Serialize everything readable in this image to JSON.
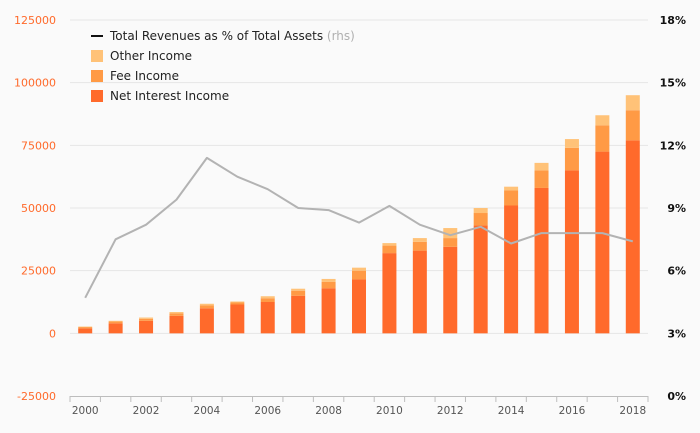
{
  "chart_data": {
    "type": "bar",
    "subtype": "stacked-bar-with-line",
    "title": "",
    "xlabel": "",
    "ylabel": "",
    "categories": [
      "2000",
      "2001",
      "2002",
      "2003",
      "2004",
      "2005",
      "2006",
      "2007",
      "2008",
      "2009",
      "2010",
      "2011",
      "2012",
      "2013",
      "2014",
      "2015",
      "2016",
      "2017",
      "2018"
    ],
    "x_tick_labels": [
      "2000",
      "2002",
      "2004",
      "2006",
      "2008",
      "2010",
      "2012",
      "2014",
      "2016",
      "2018"
    ],
    "ylim": [
      -25000,
      125000
    ],
    "y_ticks": [
      -25000,
      0,
      25000,
      50000,
      75000,
      100000,
      125000
    ],
    "y2lim": [
      0,
      18
    ],
    "y2_ticks": [
      0,
      3,
      6,
      9,
      12,
      15,
      18
    ],
    "y2_tick_suffix": "%",
    "series": [
      {
        "name": "Net Interest Income",
        "kind": "bar",
        "axis": "left",
        "color": "#ff6a2b",
        "values": [
          2000,
          4000,
          5000,
          7000,
          10000,
          11500,
          12500,
          15000,
          18000,
          21500,
          32000,
          33000,
          34500,
          43000,
          51000,
          58000,
          65000,
          72500,
          77000
        ]
      },
      {
        "name": "Fee Income",
        "kind": "bar",
        "axis": "left",
        "color": "#ff9a45",
        "values": [
          500,
          700,
          800,
          1000,
          1200,
          800,
          1500,
          2000,
          2500,
          3500,
          3000,
          3500,
          3500,
          5000,
          6000,
          7000,
          9000,
          10500,
          12000
        ]
      },
      {
        "name": "Other Income",
        "kind": "bar",
        "axis": "left",
        "color": "#ffc278",
        "values": [
          200,
          300,
          500,
          500,
          600,
          400,
          800,
          800,
          1200,
          1200,
          1000,
          1500,
          4000,
          2000,
          1500,
          3000,
          3500,
          4000,
          6000
        ]
      },
      {
        "name": "Total Revenues as % of Total Assets",
        "legend_suffix": "(rhs)",
        "kind": "line",
        "axis": "right",
        "color": "#b3b3b3",
        "values": [
          4.7,
          7.5,
          8.2,
          9.4,
          11.4,
          10.5,
          9.9,
          9.0,
          8.9,
          8.3,
          9.1,
          8.2,
          7.7,
          8.1,
          7.3,
          7.8,
          7.8,
          7.8,
          7.4
        ]
      }
    ],
    "legend": {
      "position": "top-left",
      "order": [
        "Total Revenues as % of Total Assets",
        "Other Income",
        "Fee Income",
        "Net Interest Income"
      ]
    },
    "colors": {
      "left_axis": "#ff6a2b",
      "right_axis": "#111111",
      "x_axis": "#555555",
      "grid": "#e6e6e6",
      "legend_line": "#111111"
    }
  }
}
